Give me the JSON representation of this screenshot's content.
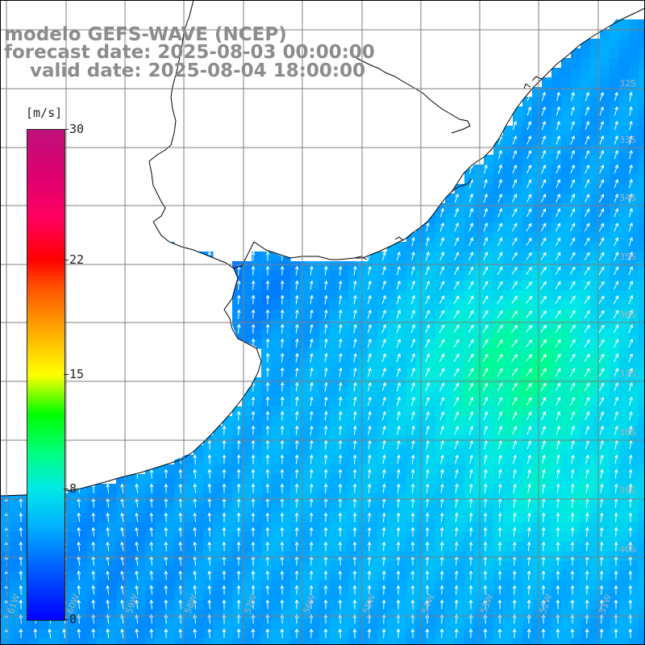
{
  "title": {
    "line1": "modelo GEFS-WAVE (NCEP)",
    "line2": "forecast date: 2025-08-03 00:00:00",
    "line3": "    valid date: 2025-08-04 18:00:00"
  },
  "colorbar": {
    "unit": "[m/s]",
    "ticks": [
      {
        "label": "30",
        "value": 30
      },
      {
        "label": "22",
        "value": 22
      },
      {
        "label": "15",
        "value": 15
      },
      {
        "label": "8",
        "value": 8
      },
      {
        "label": "0",
        "value": 0
      }
    ],
    "min": 0,
    "max": 30
  },
  "lat_labels": [
    "32S",
    "33S",
    "34S",
    "35S",
    "36S",
    "37S",
    "38S",
    "39S",
    "40S"
  ],
  "lon_labels": [
    "61W",
    "60W",
    "59W",
    "58W",
    "57W",
    "56W",
    "55W",
    "54W",
    "53W",
    "52W",
    "51W"
  ],
  "colors": {
    "land": "#ffffff",
    "coast": "#000000",
    "grid": "#7f7f7f",
    "title": "#8c8c8c",
    "arrow": "#ffffff"
  }
}
